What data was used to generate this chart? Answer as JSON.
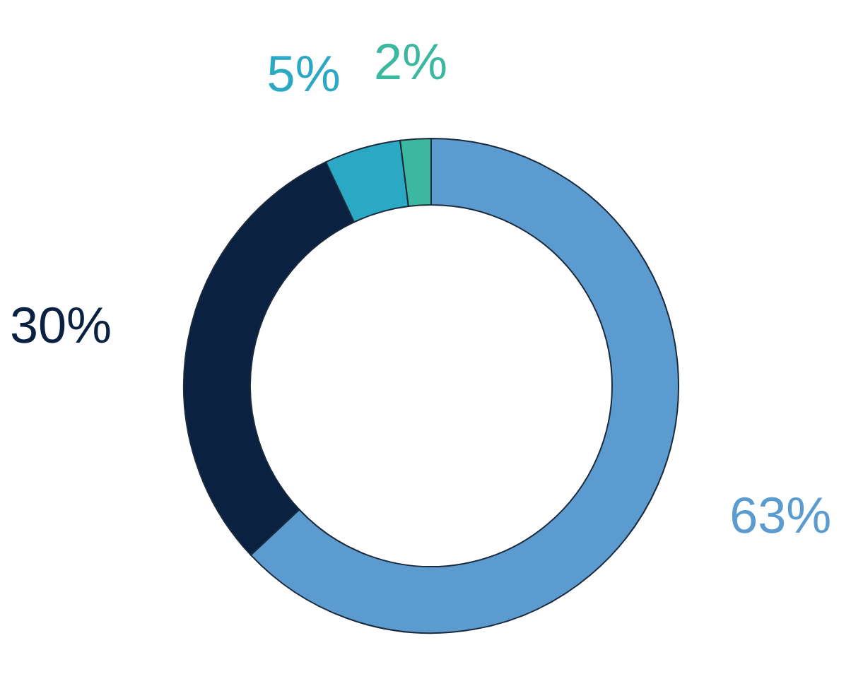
{
  "chart_data": {
    "type": "donut",
    "categories": [
      null,
      null,
      null,
      null
    ],
    "values": [
      63,
      30,
      5,
      2
    ],
    "colors": [
      "#5b9bd0",
      "#0a2142",
      "#2aa8c4",
      "#3cb8a0"
    ],
    "value_labels": [
      "63%",
      "30%",
      "5%",
      "2%"
    ]
  }
}
